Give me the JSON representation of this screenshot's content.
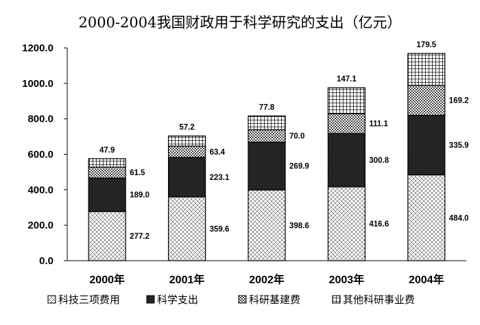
{
  "chart_data": {
    "type": "bar",
    "stacked": true,
    "title": "2000-2004我国财政用于科学研究的支出（亿元）",
    "xlabel": "",
    "ylabel": "",
    "categories": [
      "2000年",
      "2001年",
      "2002年",
      "2003年",
      "2004年"
    ],
    "ylim": [
      0,
      1200
    ],
    "yticks": [
      "0.0",
      "200.0",
      "400.0",
      "600.0",
      "800.0",
      "1000.0",
      "1200.0"
    ],
    "grid": false,
    "legend_position": "bottom",
    "series": [
      {
        "name": "科技三项费用",
        "values": [
          277.2,
          359.6,
          398.6,
          416.6,
          484.0
        ],
        "labels": [
          "277.2",
          "359.6",
          "398.6",
          "416.6",
          "484.0"
        ],
        "pattern": "crosshatch-light"
      },
      {
        "name": "科学支出",
        "values": [
          189.0,
          223.1,
          269.9,
          300.8,
          335.9
        ],
        "labels": [
          "189.0",
          "223.1",
          "269.9",
          "300.8",
          "335.9"
        ],
        "pattern": "crosshatch-dense"
      },
      {
        "name": "科研基建费",
        "values": [
          61.5,
          63.4,
          70.0,
          111.1,
          169.2
        ],
        "labels": [
          "61.5",
          "63.4",
          "70.0",
          "111.1",
          "169.2"
        ],
        "pattern": "checker-medium"
      },
      {
        "name": "其他科研事业费",
        "values": [
          47.9,
          57.2,
          77.8,
          147.1,
          179.5
        ],
        "labels": [
          "47.9",
          "57.2",
          "77.8",
          "147.1",
          "179.5"
        ],
        "pattern": "grid-square"
      }
    ]
  }
}
